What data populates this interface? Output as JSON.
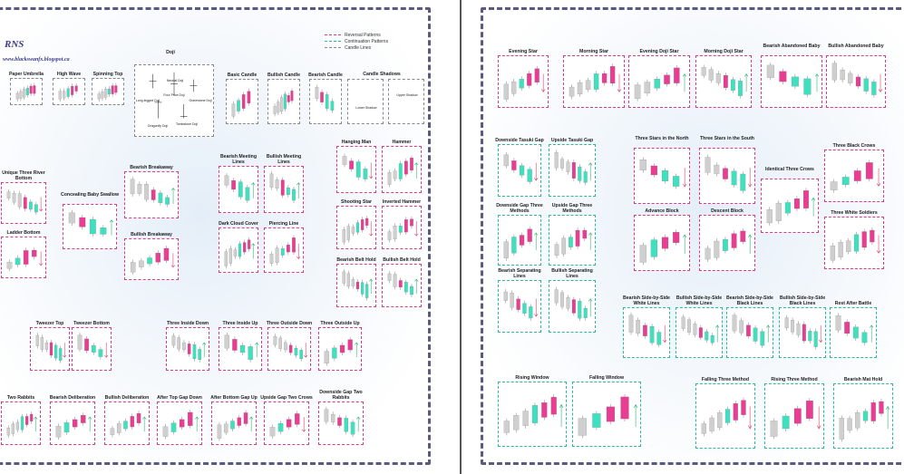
{
  "brand": {
    "title": "RNS",
    "url": "www.blackswanfx.blogspot.ca"
  },
  "legend": [
    {
      "label": "Reversal Patterns",
      "color": "#d83a8a"
    },
    {
      "label": "Continuation Patterns",
      "color": "#2ab8a0"
    },
    {
      "label": "Candle Lines",
      "color": "#888888"
    }
  ],
  "colors": {
    "bull": "#3ee0c0",
    "bear": "#e83d92",
    "neutral": "#cfcfcf",
    "arrow_up": "#2ab070",
    "arrow_down": "#d83a6a"
  },
  "doji": {
    "title": "Doji",
    "labels": [
      "Neutral Doji",
      "Long-legged Doji",
      "Four Price Doji",
      "Gravestone Doji",
      "Dragonfly Doji",
      "Tombstone Doji"
    ]
  },
  "candle_shadows": {
    "title": "Candle Shadows",
    "labels": [
      "Lower Shadow",
      "Upper Shadow"
    ]
  },
  "left_cards": [
    {
      "title": "Paper Umbrella",
      "type": "line"
    },
    {
      "title": "High Wave",
      "type": "line"
    },
    {
      "title": "Spinning Top",
      "type": "line"
    },
    {
      "title": "Basic Candle",
      "type": "line"
    },
    {
      "title": "Bullish Candle",
      "type": "line"
    },
    {
      "title": "Bearish Candle",
      "type": "line"
    },
    {
      "title": "Unique Three River Bottom",
      "type": "rev"
    },
    {
      "title": "Concealing Baby Swallow",
      "type": "rev"
    },
    {
      "title": "Bearish Breakaway",
      "type": "rev"
    },
    {
      "title": "Bearish Meeting Lines",
      "type": "rev"
    },
    {
      "title": "Bullish Meeting Lines",
      "type": "rev"
    },
    {
      "title": "Hanging Man",
      "type": "rev"
    },
    {
      "title": "Hammer",
      "type": "rev"
    },
    {
      "title": "Ladder Bottom",
      "type": "rev"
    },
    {
      "title": "Bullish Breakaway",
      "type": "rev"
    },
    {
      "title": "Dark Cloud Cover",
      "type": "rev"
    },
    {
      "title": "Piercing Line",
      "type": "rev"
    },
    {
      "title": "Shooting Star",
      "type": "rev"
    },
    {
      "title": "Inverted Hammer",
      "type": "rev"
    },
    {
      "title": "Bearish Belt Hold",
      "type": "rev"
    },
    {
      "title": "Bullish Belt Hold",
      "type": "rev"
    },
    {
      "title": "Tweezer Top",
      "type": "rev"
    },
    {
      "title": "Tweezer Bottom",
      "type": "rev"
    },
    {
      "title": "Three Inside Down",
      "type": "rev"
    },
    {
      "title": "Three Inside Up",
      "type": "rev"
    },
    {
      "title": "Three Outside Down",
      "type": "rev"
    },
    {
      "title": "Three Outside Up",
      "type": "rev"
    },
    {
      "title": "Two Rabbits",
      "type": "rev"
    },
    {
      "title": "Bearish Deliberation",
      "type": "rev"
    },
    {
      "title": "Bullish Deliberation",
      "type": "rev"
    },
    {
      "title": "After Top Gap Down",
      "type": "rev"
    },
    {
      "title": "After Bottom Gap Up",
      "type": "rev"
    },
    {
      "title": "Upside Gap Two Crows",
      "type": "rev"
    },
    {
      "title": "Downside Gap Two Rabbits",
      "type": "rev"
    }
  ],
  "right_cards": [
    {
      "title": "Evening Star",
      "type": "rev"
    },
    {
      "title": "Morning Star",
      "type": "rev"
    },
    {
      "title": "Evening Doji Star",
      "type": "rev"
    },
    {
      "title": "Morning Doji Star",
      "type": "rev"
    },
    {
      "title": "Bearish Abandoned Baby",
      "type": "rev"
    },
    {
      "title": "Bullish Abandoned Baby",
      "type": "rev"
    },
    {
      "title": "Downside Tasuki Gap",
      "type": "cont"
    },
    {
      "title": "Upside Tasuki Gap",
      "type": "cont"
    },
    {
      "title": "Three Stars in the North",
      "type": "rev"
    },
    {
      "title": "Three Stars in the South",
      "type": "rev"
    },
    {
      "title": "Three Black Crows",
      "type": "rev"
    },
    {
      "title": "Identical Three Crows",
      "type": "rev"
    },
    {
      "title": "Downside Gap Three Methods",
      "type": "cont"
    },
    {
      "title": "Upside Gap Three Methods",
      "type": "cont"
    },
    {
      "title": "Advance Block",
      "type": "rev"
    },
    {
      "title": "Descent Block",
      "type": "rev"
    },
    {
      "title": "Three White Soldiers",
      "type": "rev"
    },
    {
      "title": "Bearish Separating Lines",
      "type": "cont"
    },
    {
      "title": "Bullish Separating Lines",
      "type": "cont"
    },
    {
      "title": "Bearish Side-by-Side White Lines",
      "type": "cont"
    },
    {
      "title": "Bullish Side-by-Side White Lines",
      "type": "cont"
    },
    {
      "title": "Bearish Side-by-Side Black Lines",
      "type": "cont"
    },
    {
      "title": "Bullish Side-by-Side Black Lines",
      "type": "cont"
    },
    {
      "title": "Rest After Battle",
      "type": "cont"
    },
    {
      "title": "Rising Window",
      "type": "cont"
    },
    {
      "title": "Falling Window",
      "type": "cont"
    },
    {
      "title": "Falling Three Method",
      "type": "cont"
    },
    {
      "title": "Rising Three Method",
      "type": "cont"
    },
    {
      "title": "Bearish Mat Hold",
      "type": "cont"
    }
  ]
}
